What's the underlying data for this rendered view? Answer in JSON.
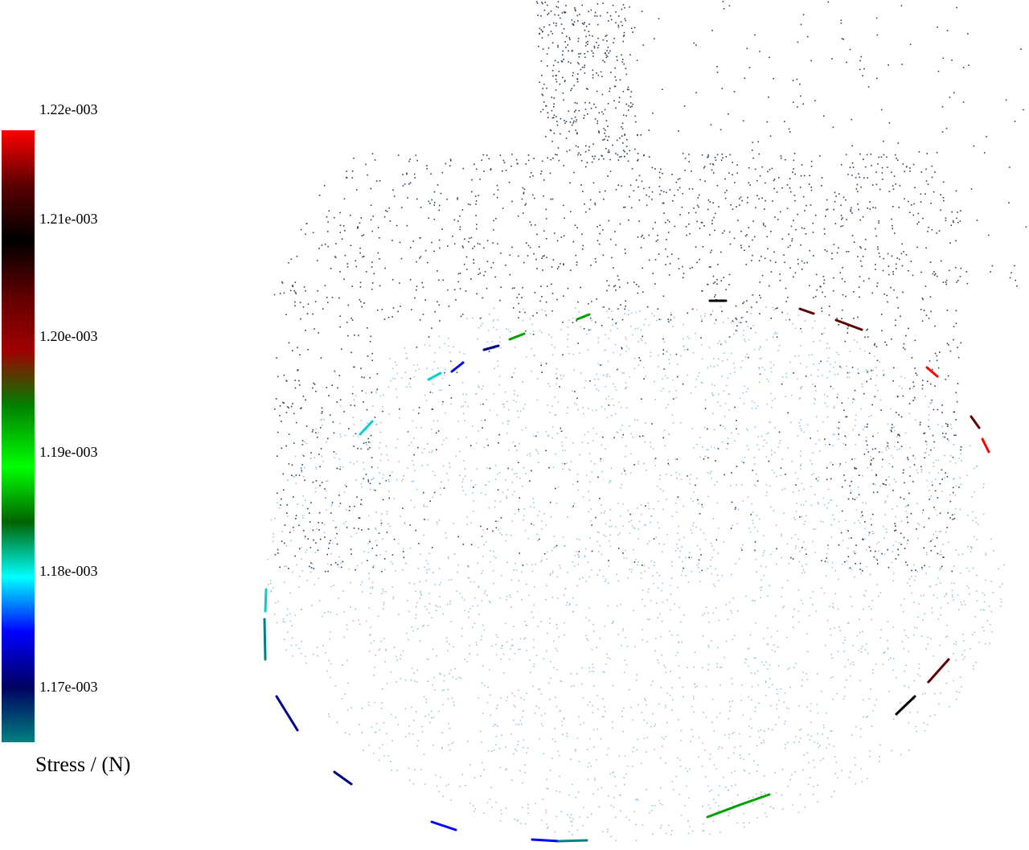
{
  "colorbar": {
    "title": "Stress / (N)",
    "tick_labels": [
      "1.22e-003",
      "1.21e-003",
      "1.20e-003",
      "1.19e-003",
      "1.18e-003",
      "1.17e-003"
    ],
    "gradient_colors": [
      "#ff0000",
      "#5a0000",
      "#000000",
      "#600000",
      "#a00000",
      "#008000",
      "#00ff00",
      "#006400",
      "#00ffff",
      "#0000ff",
      "#000060",
      "#008080"
    ]
  },
  "point_cloud": {
    "point_color_upper": "#2f3f55",
    "point_color_lower": "#9ec4dc",
    "highlight_colors": [
      "#ff0000",
      "#600000",
      "#000000",
      "#00a000",
      "#00d0d0",
      "#0000ff",
      "#00008b",
      "#008080"
    ]
  }
}
